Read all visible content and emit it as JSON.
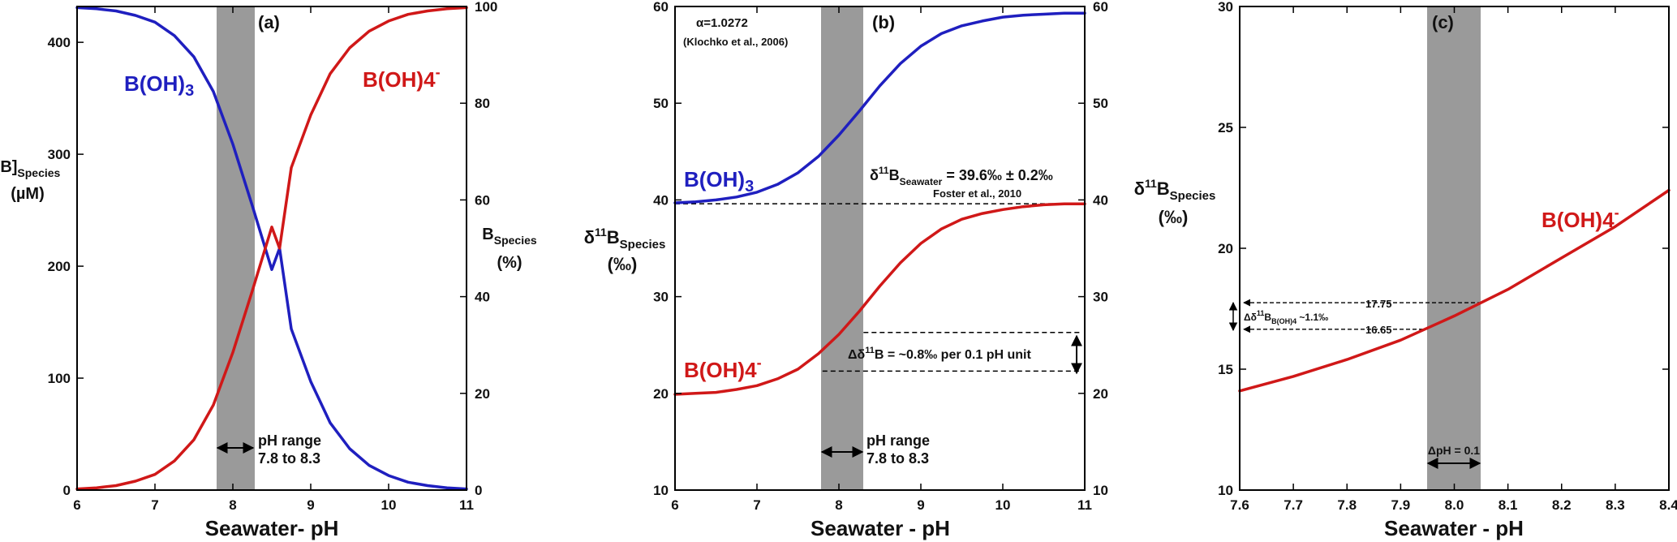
{
  "colors": {
    "boric_acid": "#1f1fbf",
    "borate": "#d01818",
    "shade": "#9a9a9a",
    "axis": "#000000"
  },
  "panels": [
    {
      "id": "a",
      "panel_label": "(a)",
      "xlabel": "Seawater- pH",
      "ylabel_left": [
        "[B]",
        "Species",
        "(µM)"
      ],
      "ylabel_right": [
        "B",
        "Species",
        "(%)"
      ]
    },
    {
      "id": "b",
      "panel_label": "(b)",
      "xlabel": "Seawater - pH",
      "ylabel_left": [
        "δ",
        "11",
        "B",
        "Species",
        "(‰)"
      ]
    },
    {
      "id": "c",
      "panel_label": "(c)",
      "xlabel": "Seawater - pH",
      "ylabel_left": [
        "δ",
        "11",
        "B",
        "Species",
        "(‰)"
      ]
    }
  ],
  "annotations": {
    "a_boh3": [
      "B(OH)",
      "3"
    ],
    "a_boh4": [
      "B(OH)4",
      "-"
    ],
    "a_ph_range": [
      "pH range",
      "7.8 to 8.3"
    ],
    "b_alpha": "α=1.0272",
    "b_alpha_ref": "(Klochko et al., 2006)",
    "b_boh3": [
      "B(OH)",
      "3"
    ],
    "b_boh4": [
      "B(OH)4",
      "-"
    ],
    "b_seawater": [
      "δ",
      "11",
      "B",
      "Seawater",
      " = 39.6‰ ± 0.2‰"
    ],
    "b_seawater_ref": "Foster et al., 2010",
    "b_delta": [
      "Δδ",
      "11",
      "B = ~0.8‰ per 0.1 pH unit"
    ],
    "b_ph_range": [
      "pH range",
      "7.8 to 8.3"
    ],
    "c_boh4": [
      "B(OH)4",
      "-"
    ],
    "c_val_high": "17.75",
    "c_val_low": "16.65",
    "c_delta": [
      "Δδ",
      "11",
      "B",
      "B(OH)4",
      " ~1.1‰"
    ],
    "c_dph": "ΔpH = 0.1"
  },
  "chart_data": [
    {
      "id": "a",
      "type": "line",
      "title": "(a)",
      "xlabel": "Seawater- pH",
      "ylabel": "[B]Species (µM)",
      "y2label": "BSpecies (%)",
      "xlim": [
        6,
        11
      ],
      "ylim": [
        0,
        432
      ],
      "y2lim": [
        0,
        100
      ],
      "xticks": [
        6,
        7,
        8,
        9,
        10,
        11
      ],
      "yticks": [
        0,
        100,
        200,
        300,
        400
      ],
      "y2ticks": [
        0,
        20,
        40,
        60,
        80,
        100
      ],
      "shaded_x_range": [
        7.8,
        8.3
      ],
      "x": [
        6.0,
        6.25,
        6.5,
        6.75,
        7.0,
        7.25,
        7.5,
        7.75,
        8.0,
        8.25,
        8.5,
        8.6,
        8.75,
        9.0,
        9.25,
        9.5,
        9.75,
        10.0,
        10.25,
        10.5,
        10.75,
        11.0
      ],
      "series": [
        {
          "name": "B(OH)3",
          "color": "#1f1fbf",
          "values": [
            431,
            430,
            428,
            424,
            418,
            406,
            387,
            356,
            309,
            254,
            197,
            216,
            144,
            97,
            60,
            37,
            22,
            13,
            7,
            4,
            2,
            1
          ]
        },
        {
          "name": "B(OH)4-",
          "color": "#d01818",
          "values": [
            1,
            2,
            4,
            8,
            14,
            26,
            45,
            76,
            123,
            178,
            235,
            216,
            288,
            335,
            372,
            395,
            410,
            419,
            425,
            428,
            430,
            431
          ]
        }
      ]
    },
    {
      "id": "b",
      "type": "line",
      "title": "(b)",
      "xlabel": "Seawater - pH",
      "ylabel": "δ11BSpecies (‰)",
      "xlim": [
        6,
        11
      ],
      "ylim": [
        10,
        60
      ],
      "xticks": [
        6,
        7,
        8,
        9,
        10,
        11
      ],
      "yticks": [
        10,
        20,
        30,
        40,
        50,
        60
      ],
      "y2ticks": [
        10,
        20,
        30,
        40,
        50,
        60
      ],
      "shaded_x_range": [
        7.8,
        8.3
      ],
      "hline": 39.6,
      "delta_lines": [
        26.3,
        22.3
      ],
      "x": [
        6.0,
        6.25,
        6.5,
        6.75,
        7.0,
        7.25,
        7.5,
        7.75,
        8.0,
        8.25,
        8.5,
        8.75,
        9.0,
        9.25,
        9.5,
        9.75,
        10.0,
        10.25,
        10.5,
        10.75,
        11.0
      ],
      "series": [
        {
          "name": "B(OH)3",
          "color": "#1f1fbf",
          "values": [
            39.7,
            39.8,
            40.0,
            40.3,
            40.8,
            41.6,
            42.8,
            44.5,
            46.7,
            49.2,
            51.8,
            54.1,
            55.9,
            57.2,
            58.0,
            58.5,
            58.9,
            59.1,
            59.2,
            59.3,
            59.3
          ]
        },
        {
          "name": "B(OH)4-",
          "color": "#d01818",
          "values": [
            19.9,
            20.0,
            20.1,
            20.4,
            20.8,
            21.5,
            22.5,
            24.1,
            26.1,
            28.5,
            31.1,
            33.5,
            35.5,
            37.0,
            38.0,
            38.6,
            39.0,
            39.3,
            39.5,
            39.6,
            39.6
          ]
        }
      ]
    },
    {
      "id": "c",
      "type": "line",
      "title": "(c)",
      "xlabel": "Seawater - pH",
      "ylabel": "δ11BSpecies (‰)",
      "xlim": [
        7.6,
        8.4
      ],
      "ylim": [
        10,
        30
      ],
      "xticks": [
        7.6,
        7.7,
        7.8,
        7.9,
        8.0,
        8.1,
        8.2,
        8.3,
        8.4
      ],
      "yticks": [
        10,
        15,
        20,
        25,
        30
      ],
      "shaded_x_range": [
        7.95,
        8.05
      ],
      "marked_values": [
        17.75,
        16.65
      ],
      "x": [
        7.6,
        7.7,
        7.8,
        7.9,
        8.0,
        8.1,
        8.2,
        8.3,
        8.4
      ],
      "series": [
        {
          "name": "B(OH)4-",
          "color": "#d01818",
          "values": [
            14.1,
            14.7,
            15.4,
            16.2,
            17.2,
            18.3,
            19.6,
            20.9,
            22.4
          ]
        }
      ]
    }
  ]
}
